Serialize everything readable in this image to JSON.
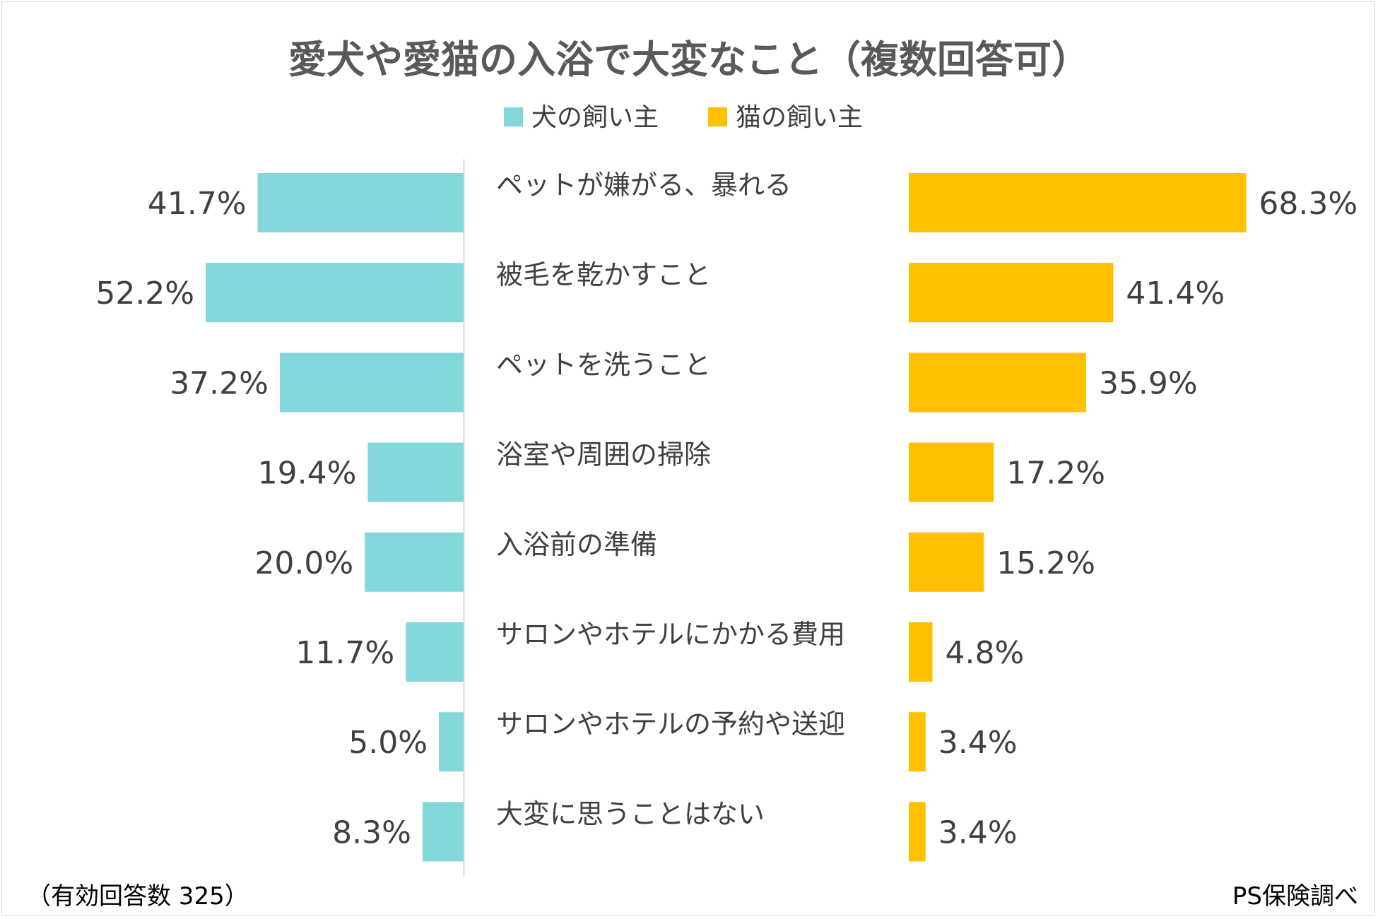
{
  "chart_data": {
    "type": "bar",
    "title": "愛犬や愛猫の入浴で大変なこと（複数回答可）",
    "series": [
      {
        "name": "犬の飼い主",
        "color": "#82d7db",
        "values": [
          41.7,
          52.2,
          37.2,
          19.4,
          20.0,
          11.7,
          5.0,
          8.3
        ],
        "labels": [
          "41.7%",
          "52.2%",
          "37.2%",
          "19.4%",
          "20.0%",
          "11.7%",
          "5.0%",
          "8.3%"
        ]
      },
      {
        "name": "猫の飼い主",
        "color": "#ffc000",
        "values": [
          68.3,
          41.4,
          35.9,
          17.2,
          15.2,
          4.8,
          3.4,
          3.4
        ],
        "labels": [
          "68.3%",
          "41.4%",
          "35.9%",
          "17.2%",
          "15.2%",
          "4.8%",
          "3.4%",
          "3.4%"
        ]
      }
    ],
    "categories": [
      "ペットが嫌がる、暴れる",
      "被毛を乾かすこと",
      "ペットを洗うこと",
      "浴室や周囲の掃除",
      "入浴前の準備",
      "サロンやホテルにかかる費用",
      "サロンやホテルの予約や送迎",
      "大変に思うことはない"
    ],
    "unit": "%",
    "legend_position": "top-center",
    "grid": false
  },
  "footer": {
    "sample_note": "（有効回答数 325）",
    "source": "PS保険調べ"
  }
}
